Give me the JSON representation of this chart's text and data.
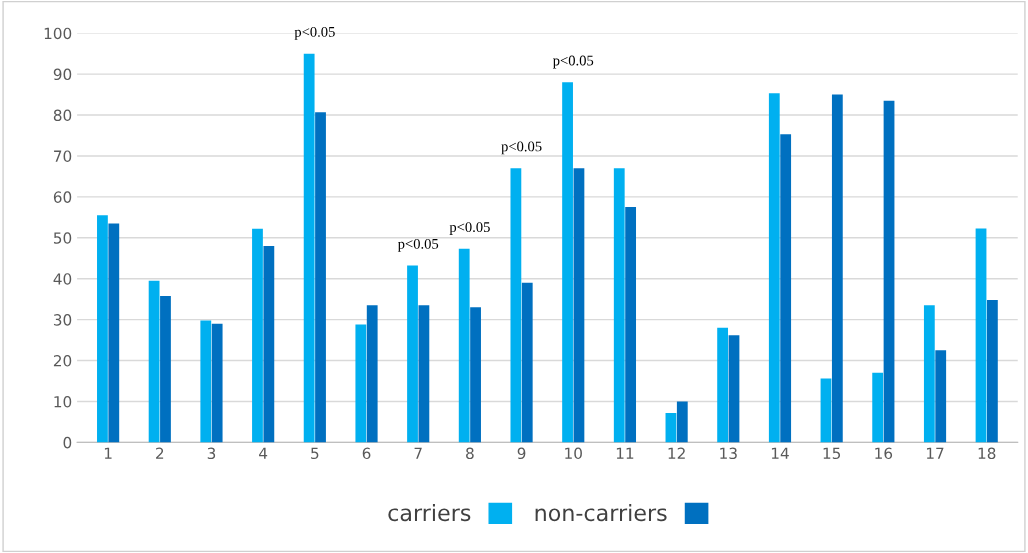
{
  "chart_data": {
    "type": "bar",
    "categories": [
      "1",
      "2",
      "3",
      "4",
      "5",
      "6",
      "7",
      "8",
      "9",
      "10",
      "11",
      "12",
      "13",
      "14",
      "15",
      "16",
      "17",
      "18"
    ],
    "series": [
      {
        "name": "carriers",
        "color": "#00b0f0",
        "values": [
          55.5,
          39.5,
          29.8,
          52.2,
          95,
          28.8,
          43.2,
          47.3,
          67,
          88,
          67,
          7.2,
          28,
          85.3,
          15.6,
          17,
          33.5,
          52.3
        ]
      },
      {
        "name": "non-carriers",
        "color": "#0070c0",
        "values": [
          53.5,
          35.8,
          29,
          48,
          80.7,
          33.5,
          33.5,
          33,
          39,
          67,
          57.5,
          10,
          26.2,
          75.3,
          85,
          83.5,
          22.5,
          34.8
        ]
      }
    ],
    "ylim": [
      0,
      100
    ],
    "yticks": [
      0,
      10,
      20,
      30,
      40,
      50,
      60,
      70,
      80,
      90,
      100
    ],
    "grid": "y",
    "legend": "bottom",
    "annotations": [
      {
        "text": "p<0.05",
        "x": "5",
        "y": 95
      },
      {
        "text": "p<0.05",
        "x": "7",
        "y": 43.2
      },
      {
        "text": "p<0.05",
        "x": "8",
        "y": 47.3
      },
      {
        "text": "p<0.05",
        "x": "9",
        "y": 67
      },
      {
        "text": "p<0.05",
        "x": "10",
        "y": 88
      }
    ]
  }
}
